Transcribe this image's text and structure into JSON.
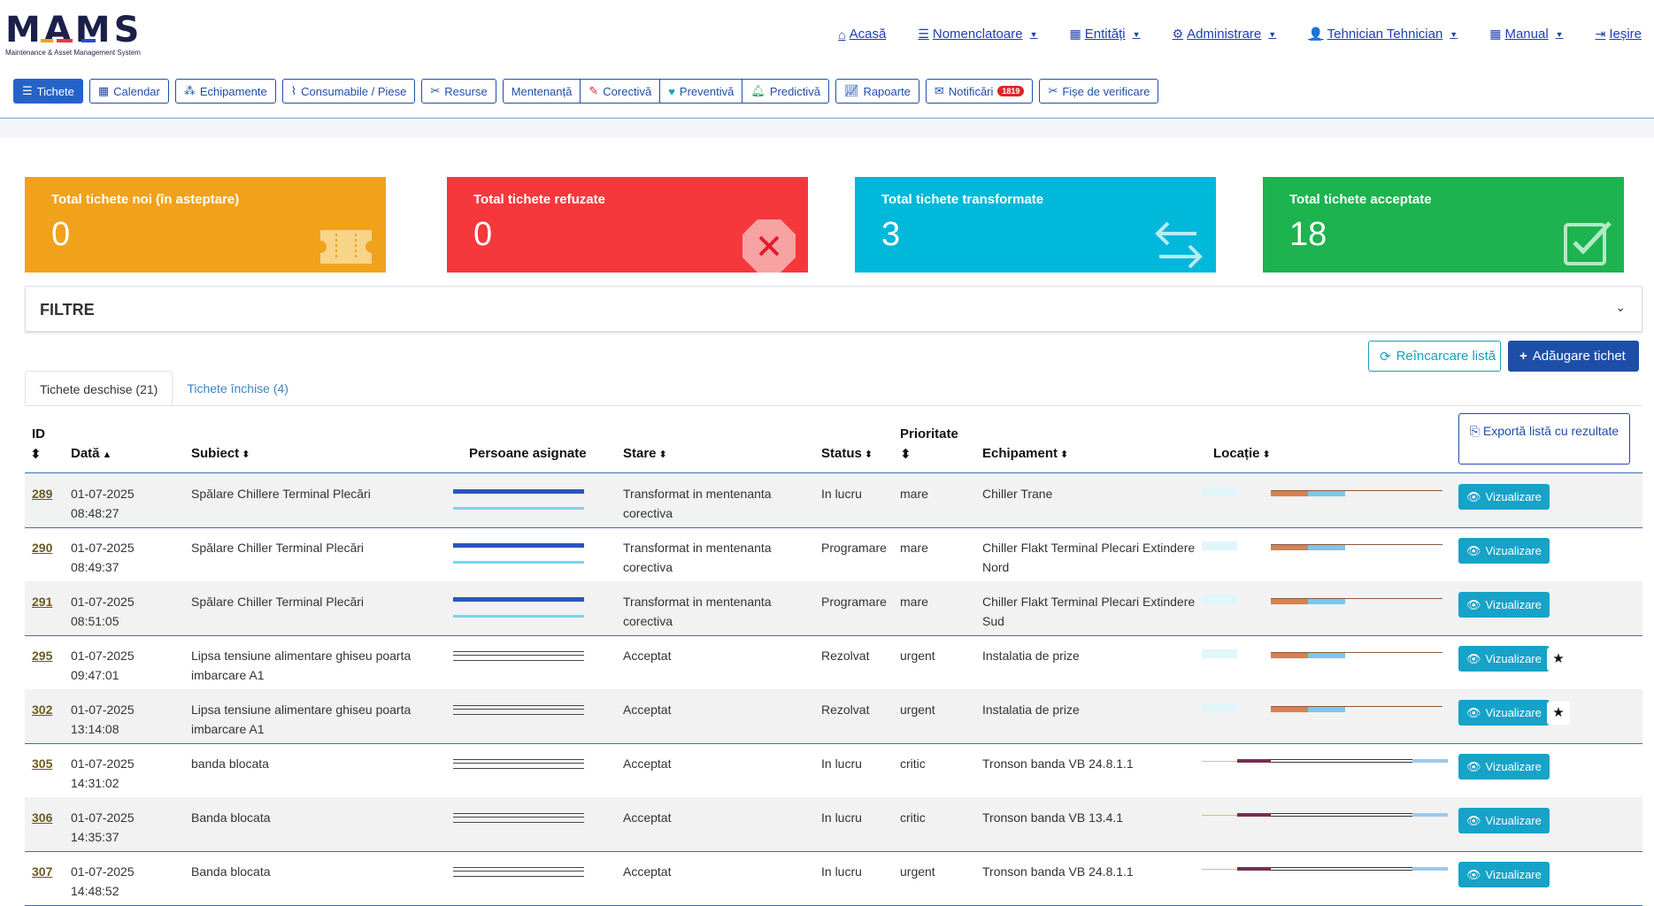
{
  "app": {
    "logo_text": "MAMS",
    "logo_subtitle": "Maintenance & Asset Management System"
  },
  "topnav": [
    {
      "icon": "home-icon",
      "glyph": "⌂",
      "label": "Acasă",
      "caret": false
    },
    {
      "icon": "list-icon",
      "glyph": "☰",
      "label": "Nomenclatoare",
      "caret": true
    },
    {
      "icon": "table-icon",
      "glyph": "▦",
      "label": "Entități",
      "caret": true
    },
    {
      "icon": "users-cog-icon",
      "glyph": "⚙",
      "label": "Administrare",
      "caret": true
    },
    {
      "icon": "user-icon",
      "glyph": "👤",
      "label": "Tehnician Tehnician",
      "caret": true
    },
    {
      "icon": "table-icon",
      "glyph": "▦",
      "label": "Manual",
      "caret": true
    },
    {
      "icon": "sign-out-icon",
      "glyph": "⇥",
      "label": "Ieșire",
      "caret": false
    }
  ],
  "modules": {
    "tichete": "Tichete",
    "calendar": "Calendar",
    "echipamente": "Echipamente",
    "consumabile": "Consumabile / Piese",
    "resurse": "Resurse",
    "mentenanta": "Mentenanță",
    "corectiva": "Corectivă",
    "preventiva": "Preventivă",
    "predictiva": "Predictivă",
    "rapoarte": "Rapoarte",
    "notificari": "Notificări",
    "notificari_count": "1819",
    "fise": "Fișe de verificare"
  },
  "cards": [
    {
      "title": "Total tichete noi (în asteptare)",
      "value": "0",
      "color": "#f0a21b",
      "icon": "ticket-icon"
    },
    {
      "title": "Total tichete refuzate",
      "value": "0",
      "color": "#f5383b",
      "icon": "times-octagon-icon"
    },
    {
      "title": "Total tichete transformate",
      "value": "3",
      "color": "#00b8d9",
      "icon": "exchange-arrows-icon"
    },
    {
      "title": "Total tichete acceptate",
      "value": "18",
      "color": "#1db34f",
      "icon": "check-square-icon"
    }
  ],
  "filter": {
    "title": "FILTRE"
  },
  "actions": {
    "reload": "Reîncarcare listă",
    "add": "Adăugare tichet",
    "export": "Exportă listă cu rezultate"
  },
  "tabs": {
    "open": "Tichete deschise (21)",
    "closed": "Tichete închise (4)"
  },
  "columns": {
    "id": "ID",
    "data": "Dată",
    "subiect": "Subiect",
    "persoane": "Persoane asignate",
    "stare": "Stare",
    "status": "Status",
    "prioritate": "Prioritate",
    "echipament": "Echipament",
    "locatie": "Locație"
  },
  "view_label": "Vizualizare",
  "rows": [
    {
      "id": "289",
      "date": "01-07-2025",
      "time": "08:48:27",
      "subject": "Spălare Chillere Terminal Plecări",
      "stare": "Transformat in mentenanta corectiva",
      "status": "In lucru",
      "priority": "mare",
      "equipment": "Chiller Trane",
      "star": false
    },
    {
      "id": "290",
      "date": "01-07-2025",
      "time": "08:49:37",
      "subject": "Spălare Chiller Terminal Plecări",
      "stare": "Transformat in mentenanta corectiva",
      "status": "Programare",
      "priority": "mare",
      "equipment": "Chiller Flakt Terminal Plecari Extindere Nord",
      "star": false
    },
    {
      "id": "291",
      "date": "01-07-2025",
      "time": "08:51:05",
      "subject": "Spălare Chiller Terminal Plecări",
      "stare": "Transformat in mentenanta corectiva",
      "status": "Programare",
      "priority": "mare",
      "equipment": "Chiller Flakt Terminal Plecari Extindere Sud",
      "star": false
    },
    {
      "id": "295",
      "date": "01-07-2025",
      "time": "09:47:01",
      "subject": "Lipsa tensiune alimentare ghiseu poarta imbarcare A1",
      "stare": "Acceptat",
      "status": "Rezolvat",
      "priority": "urgent",
      "equipment": "Instalatia de prize",
      "star": true
    },
    {
      "id": "302",
      "date": "01-07-2025",
      "time": "13:14:08",
      "subject": "Lipsa tensiune alimentare ghiseu poarta imbarcare A1",
      "stare": "Acceptat",
      "status": "Rezolvat",
      "priority": "urgent",
      "equipment": "Instalatia de prize",
      "star": true
    },
    {
      "id": "305",
      "date": "01-07-2025",
      "time": "14:31:02",
      "subject": "banda blocata",
      "stare": "Acceptat",
      "status": "In lucru",
      "priority": "critic",
      "equipment": "Tronson banda VB 24.8.1.1",
      "star": false
    },
    {
      "id": "306",
      "date": "01-07-2025",
      "time": "14:35:37",
      "subject": "Banda blocata",
      "stare": "Acceptat",
      "status": "In lucru",
      "priority": "critic",
      "equipment": "Tronson banda VB 13.4.1",
      "star": false
    },
    {
      "id": "307",
      "date": "01-07-2025",
      "time": "14:48:52",
      "subject": "Banda blocata",
      "stare": "Acceptat",
      "status": "In lucru",
      "priority": "urgent",
      "equipment": "Tronson banda VB 24.8.1.1",
      "star": false
    }
  ]
}
